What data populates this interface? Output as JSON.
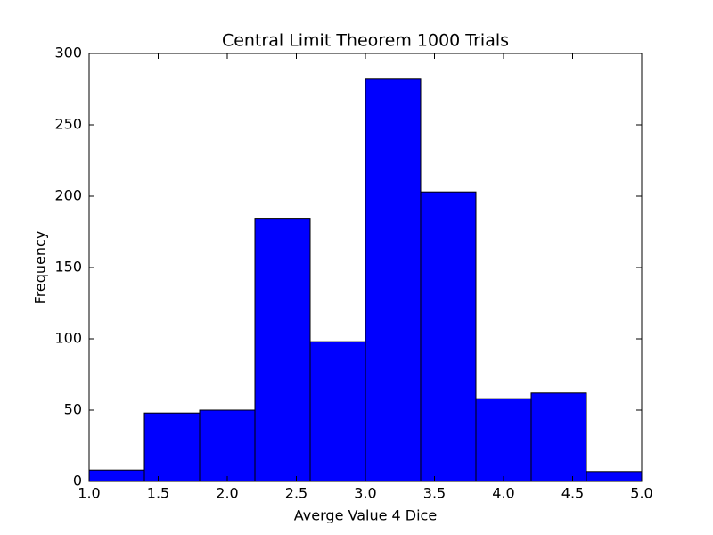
{
  "chart_data": {
    "type": "histogram",
    "title": "Central Limit Theorem 1000 Trials",
    "x_label": "Averge Value 4 Dice",
    "y_label": "Frequency",
    "bins": [
      1.0,
      1.4,
      1.8,
      2.2,
      2.6,
      3.0,
      3.4,
      3.8,
      4.2,
      4.6,
      5.0
    ],
    "values": [
      8,
      48,
      50,
      184,
      98,
      282,
      203,
      58,
      62,
      7
    ],
    "color": "#0000ff",
    "xlim": [
      1.0,
      5.0
    ],
    "xticks": [
      {
        "value": 1.0,
        "label": "1.0"
      },
      1.5,
      {
        "value": 2.0,
        "label": "2.0"
      },
      2.5,
      {
        "value": 3.0,
        "label": "3.0"
      },
      3.5,
      {
        "value": 4.0,
        "label": "4.0"
      },
      4.5,
      {
        "value": 5.0,
        "label": "5.0"
      }
    ],
    "ylim": [
      0,
      300
    ],
    "yticks": [
      0,
      50,
      100,
      150,
      200,
      250,
      300
    ],
    "grid": false
  }
}
